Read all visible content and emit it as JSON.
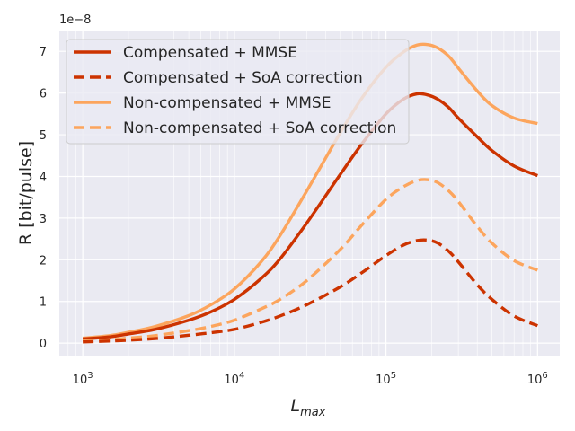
{
  "chart_data": {
    "type": "line",
    "xscale": "log",
    "xlim": [
      700,
      1400000
    ],
    "ylim": [
      -0.32,
      7.5
    ],
    "y_multiplier_label": "1e−8",
    "xlabel_base": "L",
    "xlabel_sub": "max",
    "ylabel": "R [bit/pulse]",
    "x_ticks": [
      {
        "value": 1000,
        "base": "10",
        "exp": "3"
      },
      {
        "value": 10000,
        "base": "10",
        "exp": "4"
      },
      {
        "value": 100000,
        "base": "10",
        "exp": "5"
      },
      {
        "value": 1000000,
        "base": "10",
        "exp": "6"
      }
    ],
    "y_ticks": [
      {
        "value": 0,
        "label": "0"
      },
      {
        "value": 1,
        "label": "1"
      },
      {
        "value": 2,
        "label": "2"
      },
      {
        "value": 3,
        "label": "3"
      },
      {
        "value": 4,
        "label": "4"
      },
      {
        "value": 5,
        "label": "5"
      },
      {
        "value": 6,
        "label": "6"
      },
      {
        "value": 7,
        "label": "7"
      }
    ],
    "x": [
      1000,
      1500,
      2000,
      3000,
      5000,
      7000,
      10000,
      15000,
      20000,
      30000,
      50000,
      70000,
      100000,
      130000,
      160000,
      190000,
      220000,
      260000,
      300000,
      400000,
      500000,
      700000,
      1000000
    ],
    "series": [
      {
        "name": "Compensated + MMSE",
        "color": "#cc3300",
        "dash": "solid",
        "values": [
          0.1,
          0.15,
          0.22,
          0.33,
          0.55,
          0.75,
          1.05,
          1.55,
          2.02,
          2.88,
          4.05,
          4.8,
          5.5,
          5.85,
          5.98,
          5.95,
          5.85,
          5.65,
          5.4,
          4.95,
          4.62,
          4.25,
          4.02
        ]
      },
      {
        "name": "Compensated + SoA correction",
        "color": "#cc3300",
        "dash": "dashed",
        "values": [
          0.03,
          0.05,
          0.07,
          0.11,
          0.19,
          0.25,
          0.33,
          0.5,
          0.65,
          0.92,
          1.35,
          1.7,
          2.1,
          2.35,
          2.46,
          2.47,
          2.4,
          2.2,
          1.95,
          1.4,
          1.05,
          0.65,
          0.42
        ]
      },
      {
        "name": "Non-compensated + MMSE",
        "color": "#fca55d",
        "dash": "solid",
        "values": [
          0.12,
          0.18,
          0.26,
          0.4,
          0.66,
          0.92,
          1.3,
          1.95,
          2.58,
          3.65,
          5.05,
          5.9,
          6.62,
          6.98,
          7.15,
          7.16,
          7.08,
          6.88,
          6.6,
          6.05,
          5.7,
          5.4,
          5.27
        ]
      },
      {
        "name": "Non-compensated + SoA correction",
        "color": "#fca55d",
        "dash": "dashed",
        "values": [
          0.05,
          0.08,
          0.12,
          0.18,
          0.3,
          0.4,
          0.55,
          0.82,
          1.05,
          1.5,
          2.25,
          2.85,
          3.45,
          3.75,
          3.9,
          3.92,
          3.85,
          3.65,
          3.4,
          2.8,
          2.4,
          1.98,
          1.75
        ]
      }
    ],
    "legend_placement": "top-left",
    "grid": true
  }
}
